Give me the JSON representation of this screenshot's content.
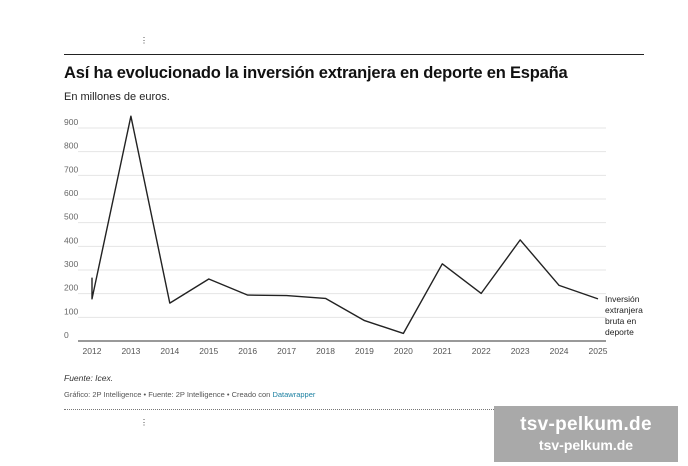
{
  "header": {
    "title": "Así ha evolucionado la inversión extranjera en deporte en España",
    "subtitle": "En millones de euros.",
    "dots": "⋮"
  },
  "footer": {
    "note": "Fuente: Icex.",
    "credit_prefix": "Gráfico: 2P Intelligence • Fuente: 2P Intelligence • Creado con ",
    "credit_link": "Datawrapper"
  },
  "watermark": {
    "line1": "tsv-pelkum.de",
    "line2": "tsv-pelkum.de"
  },
  "chart_data": {
    "type": "line",
    "title": "Así ha evolucionado la inversión extranjera en deporte en España",
    "subtitle": "En millones de euros.",
    "xlabel": "",
    "ylabel": "",
    "xlim": [
      2012,
      2025
    ],
    "ylim": [
      0,
      900
    ],
    "yticks": [
      0,
      100,
      200,
      300,
      400,
      500,
      600,
      700,
      800,
      900
    ],
    "xticks": [
      2012,
      2013,
      2014,
      2015,
      2016,
      2017,
      2018,
      2019,
      2020,
      2021,
      2022,
      2023,
      2024,
      2025
    ],
    "grid": true,
    "series": [
      {
        "name": "Inversión extranjera bruta en deporte",
        "label_lines": [
          "Inversión",
          "extranjera",
          "bruta en",
          "deporte"
        ],
        "color": "#222222",
        "x": [
          2012,
          2012,
          2013,
          2014,
          2015,
          2016,
          2017,
          2018,
          2019,
          2020,
          2021,
          2022,
          2023,
          2024,
          2025
        ],
        "values": [
          268,
          178,
          950,
          160,
          262,
          194,
          192,
          180,
          86,
          32,
          326,
          201,
          427,
          235,
          178
        ]
      }
    ]
  }
}
